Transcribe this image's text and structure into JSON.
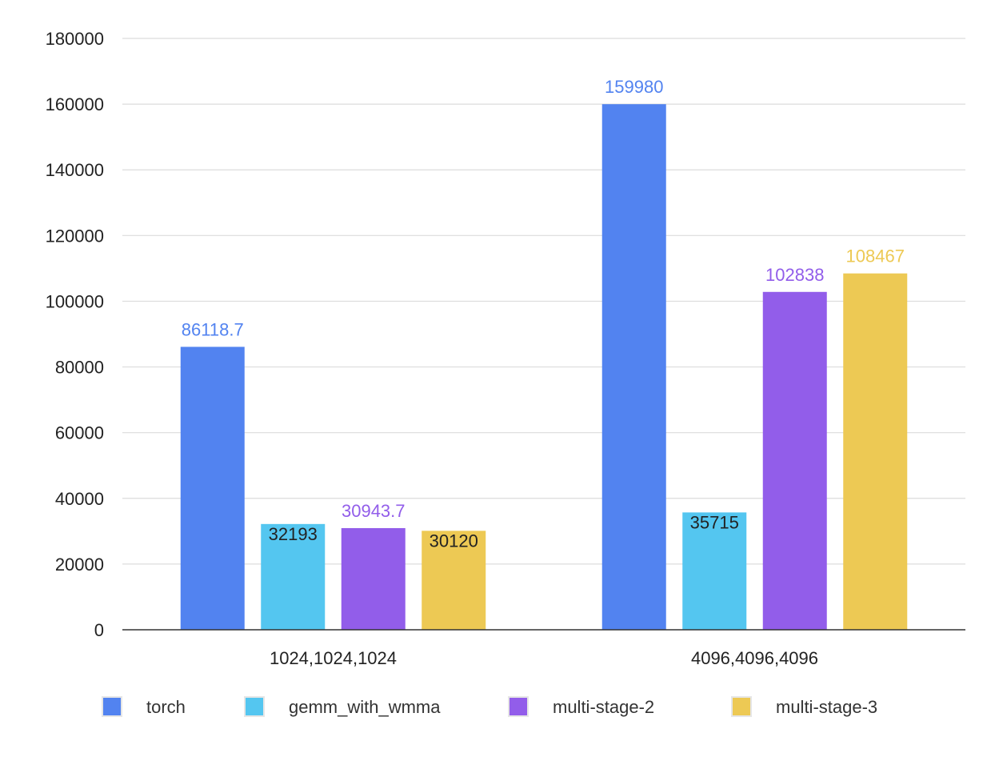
{
  "chart_data": {
    "type": "bar",
    "categories": [
      "1024,1024,1024",
      "4096,4096,4096"
    ],
    "series": [
      {
        "name": "torch",
        "color": "#5283F0",
        "values": [
          86118.7,
          159980
        ],
        "labels": [
          "86118.7",
          "159980"
        ],
        "label_color": "#5283F0",
        "label_inside": false
      },
      {
        "name": "gemm_with_wmma",
        "color": "#54C6F0",
        "values": [
          32193,
          35715
        ],
        "labels": [
          "32193",
          "35715"
        ],
        "label_color": "#222222",
        "label_inside": true
      },
      {
        "name": "multi-stage-2",
        "color": "#925DEA",
        "values": [
          30943.7,
          102838
        ],
        "labels": [
          "30943.7",
          "102838"
        ],
        "label_color": "#925DEA",
        "label_inside": false
      },
      {
        "name": "multi-stage-3",
        "color": "#EDC954",
        "values": [
          30120,
          108467
        ],
        "labels": [
          "30120",
          "108467"
        ],
        "label_color": "#222222",
        "label_color_overrides": [
          "#222222",
          "#EDC954"
        ],
        "label_inside_overrides": [
          true,
          false
        ]
      }
    ],
    "yticks": [
      0,
      20000,
      40000,
      60000,
      80000,
      100000,
      120000,
      140000,
      160000,
      180000
    ],
    "ylim": [
      0,
      180000
    ],
    "grid": true,
    "legend_position": "bottom",
    "title": "",
    "xlabel": "",
    "ylabel": ""
  }
}
